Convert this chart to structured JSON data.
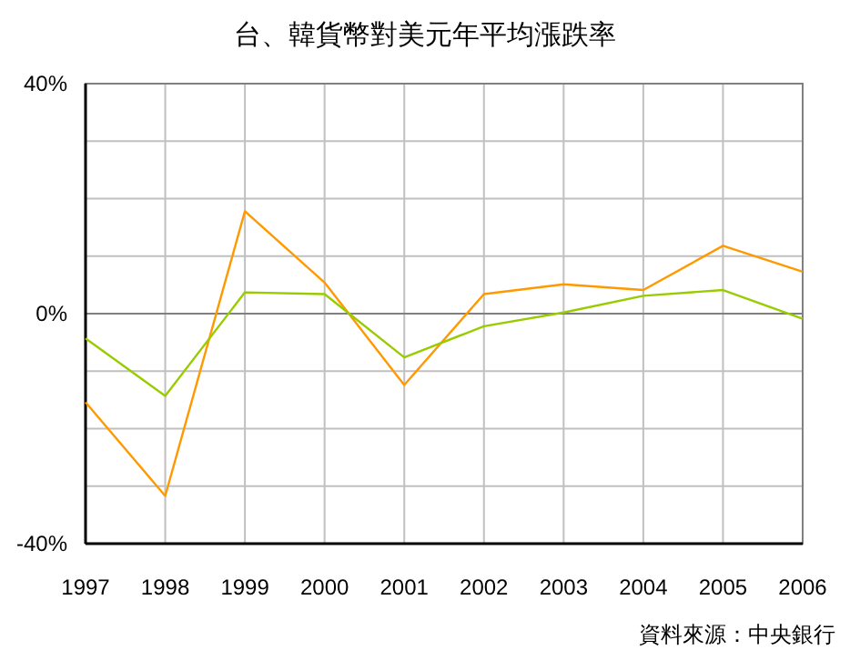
{
  "chart_data": {
    "type": "line",
    "title": "台、韓貨幣對美元年平均漲跌率",
    "categories": [
      "1997",
      "1998",
      "1999",
      "2000",
      "2001",
      "2002",
      "2003",
      "2004",
      "2005",
      "2006"
    ],
    "series": [
      {
        "color": "#ff9900",
        "values": [
          -15.4,
          -31.7,
          17.8,
          5.4,
          -12.4,
          3.4,
          5.1,
          4.1,
          11.8,
          7.3
        ]
      },
      {
        "color": "#99cc00",
        "values": [
          -4.3,
          -14.3,
          3.7,
          3.4,
          -7.6,
          -2.2,
          0.2,
          3.1,
          4.1,
          -0.9
        ]
      }
    ],
    "ylim": [
      -40,
      40
    ],
    "yticks": [
      {
        "value": -40,
        "label": "-40%"
      },
      {
        "value": -30,
        "label": null
      },
      {
        "value": -20,
        "label": null
      },
      {
        "value": -10,
        "label": null
      },
      {
        "value": 0,
        "label": "0%"
      },
      {
        "value": 10,
        "label": null
      },
      {
        "value": 20,
        "label": null
      },
      {
        "value": 30,
        "label": null
      },
      {
        "value": 40,
        "label": "40%"
      }
    ],
    "ref_lines": [
      {
        "axis": "y",
        "value": 0,
        "color": "#808080"
      }
    ],
    "grid": true,
    "marker": "none",
    "line_style": "solid",
    "annotations": [
      "資料來源：中央銀行"
    ]
  }
}
